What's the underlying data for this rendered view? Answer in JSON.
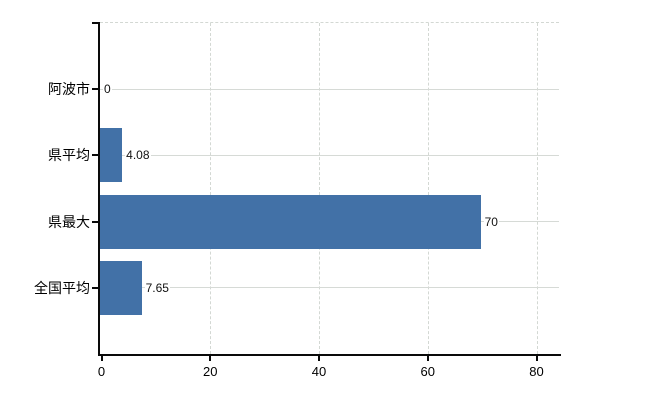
{
  "chart_data": {
    "type": "bar",
    "orientation": "horizontal",
    "categories": [
      "阿波市",
      "県平均",
      "県最大",
      "全国平均"
    ],
    "values": [
      0,
      4.08,
      70,
      7.65
    ],
    "value_labels": [
      "0",
      "4.08",
      "70",
      "7.65"
    ],
    "x_tick_values": [
      0,
      20,
      40,
      60,
      80
    ],
    "x_tick_labels": [
      "0",
      "20",
      "40",
      "60",
      "80"
    ],
    "xlim": [
      0,
      84.2
    ],
    "grid": "on",
    "legend_position": "none",
    "colors": {
      "bar": "#4271a7",
      "grid": "#d3d8d3",
      "axis": "#0a0a0a",
      "text": "#000000",
      "background": "#ffffff"
    }
  }
}
